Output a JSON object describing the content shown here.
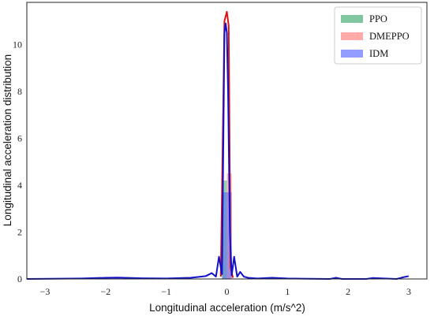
{
  "chart_data": {
    "type": "bar",
    "xlabel": "Longitudinal acceleration (m/s^2)",
    "ylabel": "Longitudinal acceleration distribution",
    "xlim": [
      -3.3,
      3.3
    ],
    "ylim": [
      0,
      11.8
    ],
    "xticks": [
      -3,
      -2,
      -1,
      0,
      1,
      2,
      3
    ],
    "yticks": [
      0,
      2,
      4,
      6,
      8,
      10
    ],
    "grid": false,
    "legend_position": "top-right",
    "histograms": [
      {
        "name": "PPO",
        "color": "#2ca25f",
        "bins": [
          {
            "x0": -0.08,
            "x1": 0.0,
            "height": 4.2
          }
        ]
      },
      {
        "name": "DMEPPO",
        "color": "#ff6f6f",
        "bins": [
          {
            "x0": 0.0,
            "x1": 0.08,
            "height": 4.5
          }
        ]
      },
      {
        "name": "IDM",
        "color": "#4a5cff",
        "bins": [
          {
            "x0": -0.08,
            "x1": 0.0,
            "height": 3.7
          },
          {
            "x0": 0.0,
            "x1": 0.08,
            "height": 3.7
          }
        ]
      }
    ],
    "curves": [
      {
        "name": "DMEPPO",
        "color": "#dd1111",
        "x": [
          -0.1,
          -0.04,
          0.0,
          0.03,
          0.06,
          0.1
        ],
        "y": [
          0.1,
          11.0,
          11.4,
          10.8,
          0.5,
          0.05
        ]
      },
      {
        "name": "IDM",
        "color": "#1111cc",
        "x": [
          -3.3,
          -2.4,
          -2.0,
          -1.8,
          -1.4,
          -1.0,
          -0.6,
          -0.35,
          -0.25,
          -0.18,
          -0.13,
          -0.08,
          -0.04,
          -0.02,
          0.0,
          0.02,
          0.05,
          0.08,
          0.12,
          0.17,
          0.22,
          0.28,
          0.35,
          0.5,
          0.75,
          1.0,
          1.7,
          1.8,
          1.9,
          2.3,
          2.4,
          2.8,
          2.92,
          3.0
        ],
        "y": [
          0.0,
          0.02,
          0.05,
          0.06,
          0.03,
          0.02,
          0.05,
          0.12,
          0.25,
          0.1,
          0.95,
          0.2,
          10.5,
          10.9,
          10.5,
          8.0,
          2.0,
          0.15,
          0.95,
          0.1,
          0.3,
          0.1,
          0.05,
          0.02,
          0.05,
          0.02,
          0.0,
          0.05,
          0.0,
          0.0,
          0.04,
          0.0,
          0.08,
          0.12
        ]
      }
    ],
    "legend": [
      {
        "label": "PPO",
        "color": "#2ca25f"
      },
      {
        "label": "DMEPPO",
        "color": "#ff6f6f"
      },
      {
        "label": "IDM",
        "color": "#4a5cff"
      }
    ]
  }
}
